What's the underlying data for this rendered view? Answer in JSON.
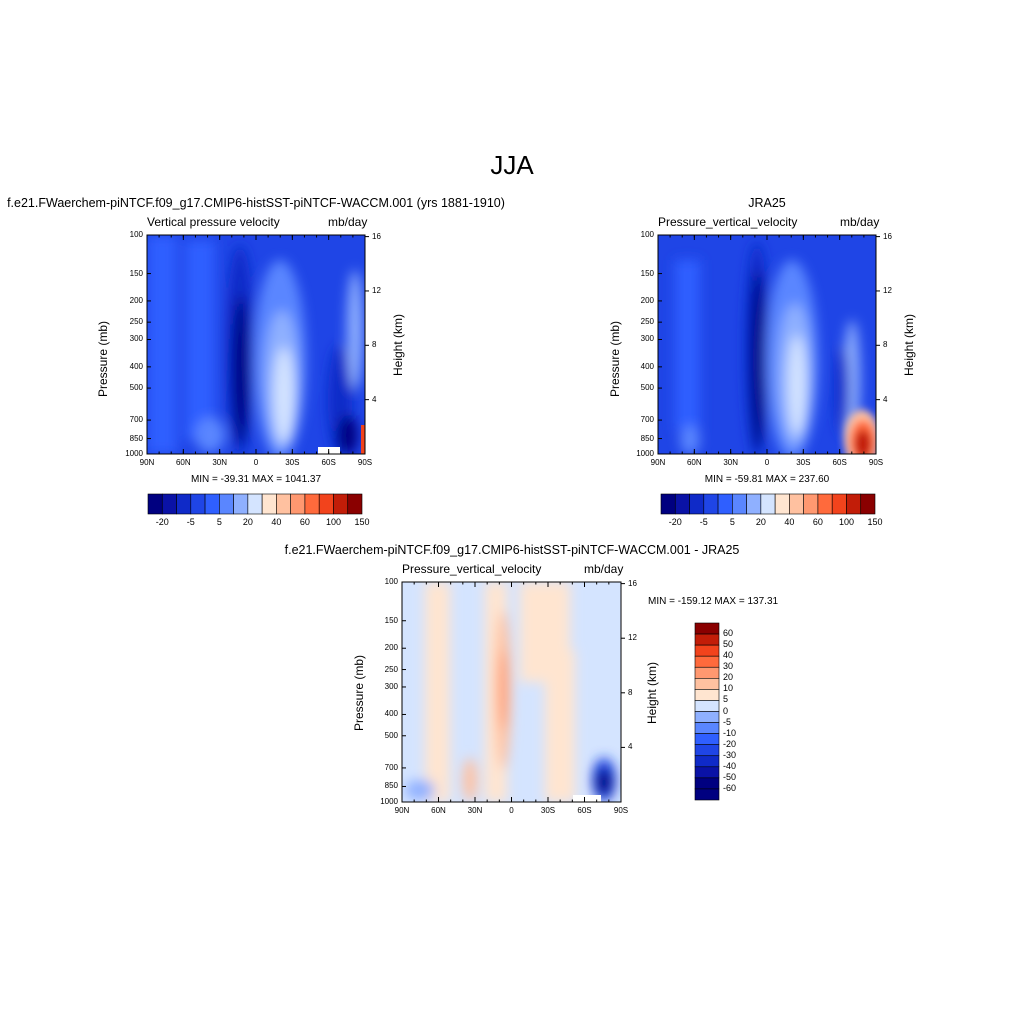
{
  "figure": {
    "season_title": "JJA"
  },
  "palette": {
    "model_levels": [
      "#000080",
      "#0a12a6",
      "#0f2ac8",
      "#1f45e6",
      "#2f5fff",
      "#5a86ff",
      "#8fb0ff",
      "#d4e4ff",
      "#ffe5d0",
      "#ffc1a0",
      "#ff9870",
      "#ff6a3c",
      "#f2431c",
      "#c21d08",
      "#8a0000"
    ],
    "diff_levels": [
      "#000080",
      "#0a12a6",
      "#0f2ac8",
      "#1f45e6",
      "#2f5fff",
      "#5a86ff",
      "#8fb0ff",
      "#d4e4ff",
      "#ffe5d0",
      "#ffc1a0",
      "#ff9870",
      "#ff6a3c",
      "#f2431c",
      "#c21d08",
      "#8a0000"
    ]
  },
  "panels": [
    {
      "id": "model",
      "title": "f.e21.FWaerchem-piNTCF.f09_g17.CMIP6-histSST-piNTCF-WACCM.001 (yrs 1881-1910)",
      "left_label": "Vertical pressure velocity",
      "right_label": "mb/day",
      "ylabel": "Pressure (mb)",
      "y2label": "Height (km)",
      "minmax": "MIN = -39.31  MAX = 1041.37",
      "colorbar_labels": [
        "-20",
        "-5",
        "5",
        "20",
        "40",
        "60",
        "100",
        "150"
      ]
    },
    {
      "id": "obs",
      "title": "JRA25",
      "left_label": "Pressure_vertical_velocity",
      "right_label": "mb/day",
      "ylabel": "Pressure (mb)",
      "y2label": "Height (km)",
      "minmax": "MIN = -59.81  MAX = 237.60",
      "colorbar_labels": [
        "-20",
        "-5",
        "5",
        "20",
        "40",
        "60",
        "100",
        "150"
      ]
    },
    {
      "id": "diff",
      "title": "f.e21.FWaerchem-piNTCF.f09_g17.CMIP6-histSST-piNTCF-WACCM.001 - JRA25",
      "left_label": "Pressure_vertical_velocity",
      "right_label": "mb/day",
      "ylabel": "Pressure (mb)",
      "y2label": "Height (km)",
      "minmax": "MIN = -159.12  MAX = 137.31",
      "colorbar_labels": [
        "60",
        "50",
        "40",
        "30",
        "20",
        "10",
        "5",
        "0",
        "-5",
        "-10",
        "-20",
        "-30",
        "-40",
        "-50",
        "-60"
      ]
    }
  ],
  "chart_data": [
    {
      "type": "heatmap",
      "title": "f.e21.FWaerchem-piNTCF.f09_g17.CMIP6-histSST-piNTCF-WACCM.001 (yrs 1881-1910)",
      "variable": "Vertical pressure velocity",
      "units": "mb/day",
      "x_ticks": [
        "90N",
        "60N",
        "30N",
        "0",
        "30S",
        "60S",
        "90S"
      ],
      "x_values": [
        90,
        60,
        30,
        0,
        -30,
        -60,
        -90
      ],
      "y_ticks": [
        "100",
        "150",
        "200",
        "250",
        "300",
        "400",
        "500",
        "700",
        "850",
        "1000"
      ],
      "y2_ticks": [
        "16",
        "12",
        "8",
        "4"
      ],
      "xlim": [
        90,
        -90
      ],
      "ylim": [
        1000,
        100
      ],
      "y_scale": "log",
      "xlabel": "",
      "ylabel": "Pressure (mb)",
      "y2label": "Height (km)",
      "levels": [
        -20,
        -5,
        5,
        20,
        40,
        60,
        100,
        150
      ],
      "min": -39.31,
      "max": 1041.37,
      "features": [
        {
          "lat": -30,
          "p_top": 250,
          "p_bot": 800,
          "level_index": 7
        },
        {
          "lat": 10,
          "p_top": 200,
          "p_bot": 950,
          "level_index": 0
        },
        {
          "lat": -85,
          "p_top": 700,
          "p_bot": 1000,
          "level_index": 14
        }
      ]
    },
    {
      "type": "heatmap",
      "title": "JRA25",
      "variable": "Pressure_vertical_velocity",
      "units": "mb/day",
      "x_ticks": [
        "90N",
        "60N",
        "30N",
        "0",
        "30S",
        "60S",
        "90S"
      ],
      "x_values": [
        90,
        60,
        30,
        0,
        -30,
        -60,
        -90
      ],
      "y_ticks": [
        "100",
        "150",
        "200",
        "250",
        "300",
        "400",
        "500",
        "700",
        "850",
        "1000"
      ],
      "y2_ticks": [
        "16",
        "12",
        "8",
        "4"
      ],
      "xlim": [
        90,
        -90
      ],
      "ylim": [
        1000,
        100
      ],
      "y_scale": "log",
      "xlabel": "",
      "ylabel": "Pressure (mb)",
      "y2label": "Height (km)",
      "levels": [
        -20,
        -5,
        5,
        20,
        40,
        60,
        100,
        150
      ],
      "min": -59.81,
      "max": 237.6,
      "features": [
        {
          "lat": -30,
          "p_top": 250,
          "p_bot": 800,
          "level_index": 7
        },
        {
          "lat": 10,
          "p_top": 200,
          "p_bot": 950,
          "level_index": 0
        },
        {
          "lat": -80,
          "p_top": 650,
          "p_bot": 1000,
          "level_index": 13
        }
      ]
    },
    {
      "type": "heatmap",
      "title": "f.e21.FWaerchem-piNTCF.f09_g17.CMIP6-histSST-piNTCF-WACCM.001 - JRA25",
      "variable": "Pressure_vertical_velocity",
      "units": "mb/day",
      "x_ticks": [
        "90N",
        "60N",
        "30N",
        "0",
        "30S",
        "60S",
        "90S"
      ],
      "x_values": [
        90,
        60,
        30,
        0,
        -30,
        -60,
        -90
      ],
      "y_ticks": [
        "100",
        "150",
        "200",
        "250",
        "300",
        "400",
        "500",
        "700",
        "850",
        "1000"
      ],
      "y2_ticks": [
        "16",
        "12",
        "8",
        "4"
      ],
      "xlim": [
        90,
        -90
      ],
      "ylim": [
        1000,
        100
      ],
      "y_scale": "log",
      "xlabel": "",
      "ylabel": "Pressure (mb)",
      "y2label": "Height (km)",
      "levels": [
        -60,
        -50,
        -40,
        -30,
        -20,
        -10,
        -5,
        0,
        5,
        10,
        20,
        30,
        40,
        50,
        60
      ],
      "min": -159.12,
      "max": 137.31,
      "features": [
        {
          "lat": 10,
          "p_top": 200,
          "p_bot": 800,
          "level_index": 10
        },
        {
          "lat": -78,
          "p_top": 700,
          "p_bot": 950,
          "level_index": 1
        }
      ]
    }
  ]
}
